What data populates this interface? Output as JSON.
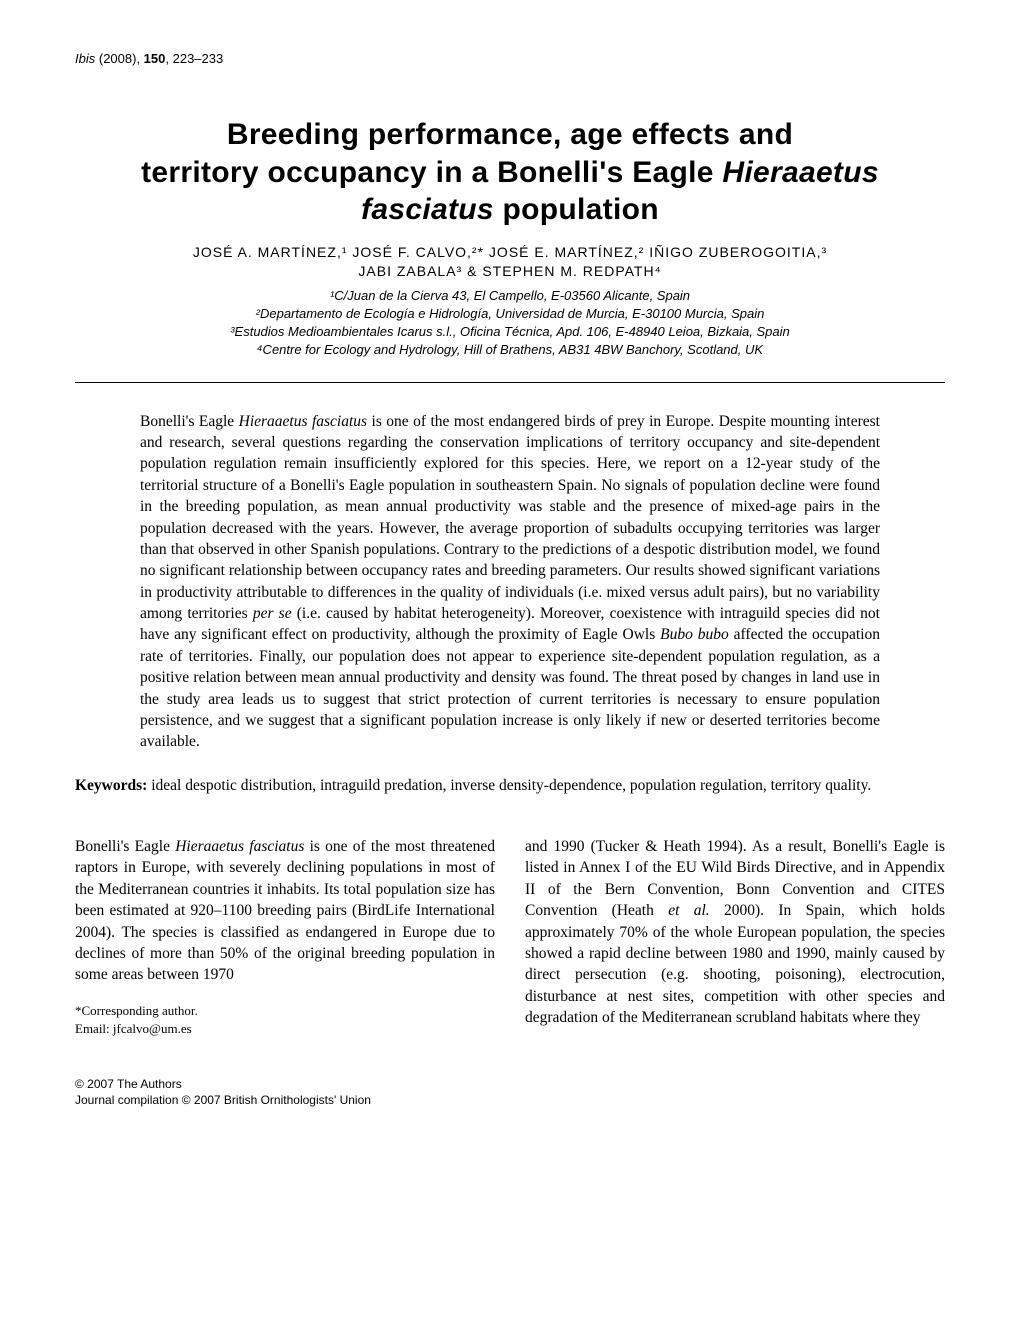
{
  "journal": {
    "name": "Ibis",
    "year": "(2008)",
    "volume": "150",
    "pages": "223–233"
  },
  "title": {
    "line1": "Breeding performance, age effects and",
    "line2_a": "territory occupancy in a Bonelli's Eagle ",
    "line2_b": "Hieraaetus",
    "line3_a": "fasciatus",
    "line3_b": " population"
  },
  "authors": {
    "line1": "JOSÉ A. MARTÍNEZ,¹ JOSÉ F. CALVO,²* JOSÉ E. MARTÍNEZ,² IÑIGO ZUBEROGOITIA,³",
    "line2": "JABI ZABALA³ & STEPHEN M. REDPATH⁴"
  },
  "affiliations": {
    "a1": "¹C/Juan de la Cierva 43, El Campello, E-03560 Alicante, Spain",
    "a2": "²Departamento de Ecología e Hidrología, Universidad de Murcia, E-30100 Murcia, Spain",
    "a3": "³Estudios Medioambientales Icarus s.l., Oficina Técnica, Apd. 106, E-48940 Leioa, Bizkaia, Spain",
    "a4": "⁴Centre for Ecology and Hydrology, Hill of Brathens, AB31 4BW Banchory, Scotland, UK"
  },
  "abstract": {
    "p1a": "Bonelli's Eagle ",
    "p1b": "Hieraaetus fasciatus",
    "p1c": " is one of the most endangered birds of prey in Europe. Despite mounting interest and research, several questions regarding the conservation implications of territory occupancy and site-dependent population regulation remain insufficiently explored for this species. Here, we report on a 12-year study of the territorial structure of a Bonelli's Eagle population in southeastern Spain. No signals of population decline were found in the breeding population, as mean annual productivity was stable and the presence of mixed-age pairs in the population decreased with the years. However, the average proportion of subadults occupying territories was larger than that observed in other Spanish populations. Contrary to the predictions of a despotic distribution model, we found no significant relationship between occupancy rates and breeding parameters. Our results showed significant variations in productivity attributable to differences in the quality of individuals (i.e. mixed versus adult pairs), but no variability among territories ",
    "p1d": "per se",
    "p1e": " (i.e. caused by habitat heterogeneity). Moreover, coexistence with intraguild species did not have any significant effect on productivity, although the proximity of Eagle Owls ",
    "p1f": "Bubo bubo",
    "p1g": " affected the occupation rate of territories. Finally, our population does not appear to experience site-dependent population regulation, as a positive relation between mean annual productivity and density was found. The threat posed by changes in land use in the study area leads us to suggest that strict protection of current territories is necessary to ensure population persistence, and we suggest that a significant population increase is only likely if new or deserted territories become available."
  },
  "keywords": {
    "label": "Keywords:",
    "text": " ideal despotic distribution, intraguild predation, inverse density-dependence, population regulation, territory quality."
  },
  "body": {
    "left": {
      "p1a": "Bonelli's Eagle ",
      "p1b": "Hieraaetus fasciatus",
      "p1c": " is one of the most threatened raptors in Europe, with severely declining populations in most of the Mediterranean countries it inhabits. Its total population size has been estimated at 920–1100 breeding pairs (BirdLife International 2004). The species is classified as endangered in Europe due to declines of more than 50% of the original breeding population in some areas between 1970"
    },
    "right": {
      "p1a": "and 1990 (Tucker & Heath 1994). As a result, Bonelli's Eagle is listed in Annex I of the EU Wild Birds Directive, and in Appendix II of the Bern Convention, Bonn Convention and CITES Convention (Heath ",
      "p1b": "et al.",
      "p1c": " 2000). In Spain, which holds approximately 70% of the whole European population, the species showed a rapid decline between 1980 and 1990, mainly caused by direct persecution (e.g. shooting, poisoning), electrocution, disturbance at nest sites, competition with other species and degradation of the Mediterranean scrubland habitats where they"
    }
  },
  "corresponding": {
    "label": "*Corresponding author.",
    "email": "Email: jfcalvo@um.es"
  },
  "footer": {
    "line1": "© 2007 The Authors",
    "line2": "Journal compilation © 2007 British Ornithologists' Union"
  }
}
